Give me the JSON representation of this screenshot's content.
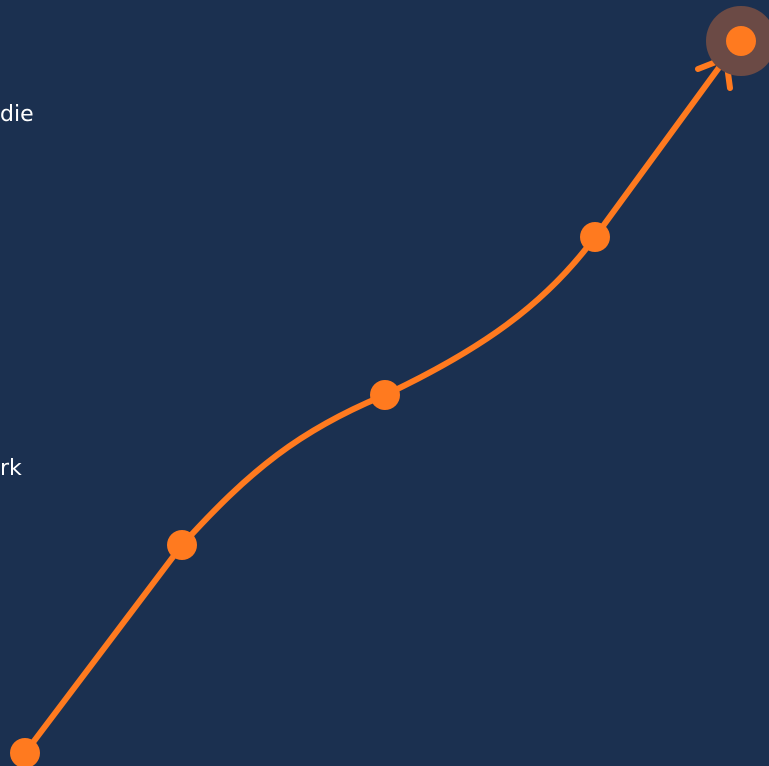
{
  "text_fragments": [
    "die",
    "rk"
  ],
  "colors": {
    "background": "#1b3050",
    "accent": "#ff7a1f",
    "endpoint_halo": "#6b4a45",
    "text": "#ffffff"
  },
  "path": {
    "nodes": 5,
    "endpoint": "arrow-with-highlighted-node"
  }
}
